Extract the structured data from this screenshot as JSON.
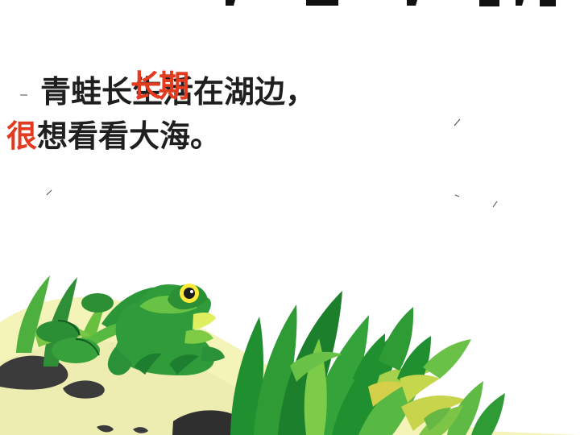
{
  "slide": {
    "line1": "青蛙长",
    "line1_rest": "生活在湖边，",
    "overlay_word": "长期",
    "line2_lead": "很",
    "line2_rest": "想看看大海。"
  },
  "colors": {
    "text": "#1f1f1f",
    "highlight": "#e33b1f",
    "plant_dark": "#1f8f2f",
    "plant_light": "#74c43d",
    "frog": "#2f9b3a",
    "frog_eye": "#ffea3a",
    "ground": "#f4f3b8",
    "rock": "#3b3b3b"
  },
  "icons": {
    "frog": "frog-icon",
    "plants": "plants-icon",
    "rocks": "rocks-icon"
  }
}
